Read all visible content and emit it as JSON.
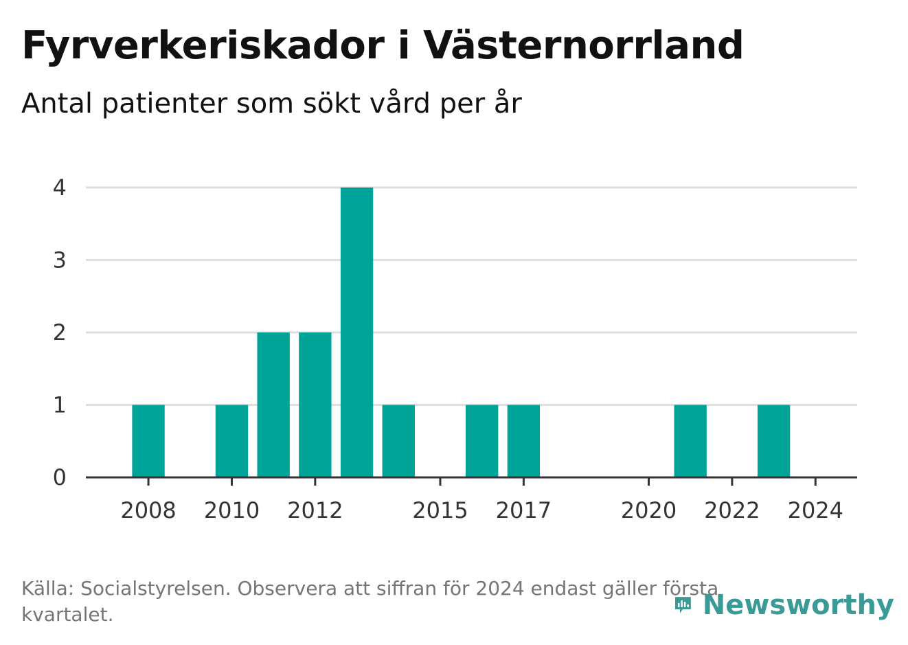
{
  "brand": {
    "name": "Newsworthy",
    "color": "#3a9a96"
  },
  "footer": {
    "source_note": "Källa: Socialstyrelsen. Observera att siffran för 2024 endast gäller första kvartalet."
  },
  "chart_data": {
    "type": "bar",
    "title": "Fyrverkeriskador i Västernorrland",
    "subtitle": "Antal patienter som sökt vård per år",
    "xlabel": "",
    "ylabel": "",
    "bar_color": "#00a398",
    "grid": true,
    "xlim": [
      2006.5,
      2025.0
    ],
    "ylim": [
      0,
      4
    ],
    "yticks": [
      0,
      1,
      2,
      3,
      4
    ],
    "xticks": [
      2008,
      2010,
      2012,
      2015,
      2017,
      2020,
      2022,
      2024
    ],
    "categories": [
      2008,
      2009,
      2010,
      2011,
      2012,
      2013,
      2014,
      2015,
      2016,
      2017,
      2018,
      2019,
      2020,
      2021,
      2022,
      2023,
      2024
    ],
    "values": [
      1,
      0,
      1,
      2,
      2,
      4,
      1,
      0,
      1,
      1,
      0,
      0,
      0,
      1,
      0,
      1,
      0
    ]
  }
}
